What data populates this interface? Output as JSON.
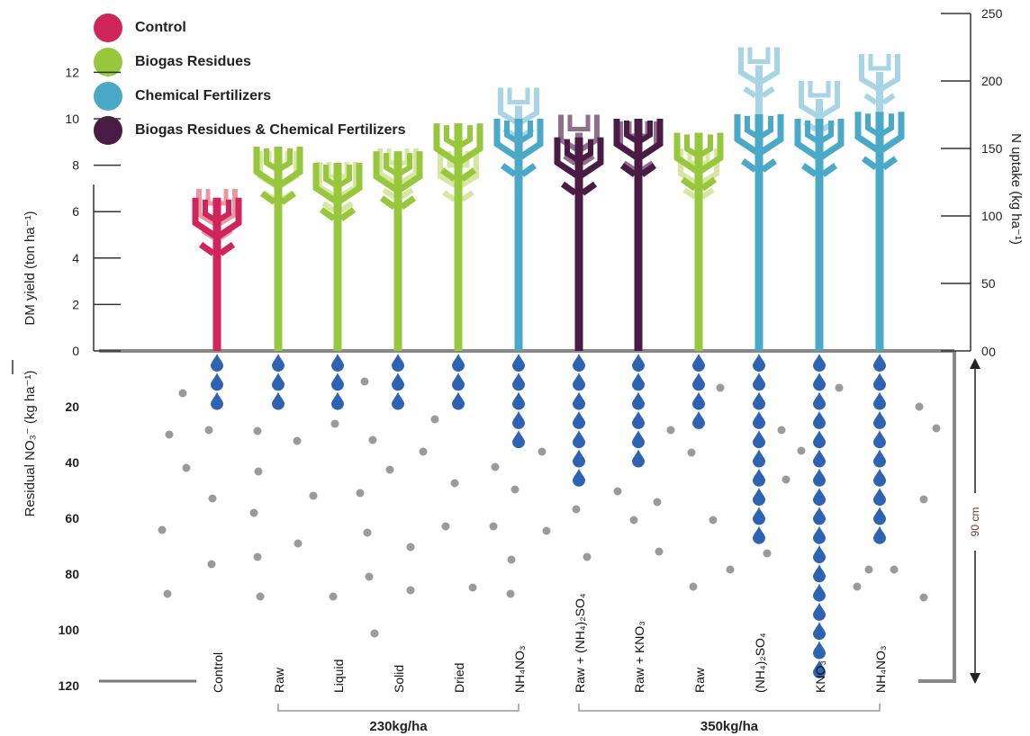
{
  "chart_data": {
    "type": "bar",
    "legend": [
      {
        "name": "Control",
        "color": "#d0255b"
      },
      {
        "name": "Biogas Residues",
        "color": "#96c73c"
      },
      {
        "name": "Chemical Fertilizers",
        "color": "#4ba9c8"
      },
      {
        "name": "Biogas Residues & Chemical Fertilizers",
        "color": "#4a1c45"
      }
    ],
    "legend_position": "top-left",
    "axes": {
      "dm_yield": {
        "label": "DM yield (ton ha⁻¹)",
        "ticks": [
          "0",
          "2",
          "4",
          "6",
          "8",
          "10",
          "12"
        ],
        "range": [
          0,
          12
        ]
      },
      "n_uptake": {
        "label": "N uptake (kg ha⁻¹)",
        "ticks": [
          "0",
          "50",
          "100",
          "150",
          "200",
          "250"
        ],
        "range": [
          0,
          250
        ]
      },
      "residual_no3": {
        "label": "Residual NO₃⁻ (kg ha⁻¹)",
        "ticks": [
          "20",
          "40",
          "60",
          "80",
          "100",
          "120"
        ],
        "range": [
          0,
          120
        ]
      }
    },
    "depth": {
      "label": "90 cm",
      "top_tick": "0"
    },
    "treatments": [
      {
        "name": "Control",
        "group": "Control",
        "dm_yield": 6.6,
        "n_uptake": 120,
        "residual_no3": 13
      },
      {
        "name": "Raw",
        "group": "Biogas Residues",
        "dm_yield": 8.8,
        "n_uptake": 148,
        "residual_no3": 13
      },
      {
        "name": "Liquid",
        "group": "Biogas Residues",
        "dm_yield": 8.1,
        "n_uptake": 140,
        "residual_no3": 13
      },
      {
        "name": "Solid",
        "group": "Biogas Residues",
        "dm_yield": 8.6,
        "n_uptake": 150,
        "residual_no3": 13
      },
      {
        "name": "Dried",
        "group": "Biogas Residues",
        "dm_yield": 9.8,
        "n_uptake": 148,
        "residual_no3": 13
      },
      {
        "name": "NH₄NO₃",
        "group": "Chemical Fertilizers",
        "dm_yield": 10.0,
        "n_uptake": 195,
        "residual_no3": 31
      },
      {
        "name": "Raw + (NH₄)₂SO₄",
        "group": "Biogas Residues & Chemical Fertilizers",
        "dm_yield": 9.2,
        "n_uptake": 175,
        "residual_no3": 42
      },
      {
        "name": "Raw + KNO₃",
        "group": "Biogas Residues & Chemical Fertilizers",
        "dm_yield": 10.0,
        "n_uptake": 170,
        "residual_no3": 35
      },
      {
        "name": "Raw",
        "group": "Biogas Residues",
        "dm_yield": 9.4,
        "n_uptake": 150,
        "residual_no3": 20
      },
      {
        "name": "(NH₄)₂SO₄",
        "group": "Chemical Fertilizers",
        "dm_yield": 10.2,
        "n_uptake": 225,
        "residual_no3": 64
      },
      {
        "name": "KNO₃",
        "group": "Chemical Fertilizers",
        "dm_yield": 10.0,
        "n_uptake": 200,
        "residual_no3": 108
      },
      {
        "name": "NH₄NO₃",
        "group": "Chemical Fertilizers",
        "dm_yield": 10.3,
        "n_uptake": 220,
        "residual_no3": 64
      }
    ],
    "brackets": [
      {
        "label": "230kg/ha",
        "from": 1,
        "to": 5
      },
      {
        "label": "350kg/ha",
        "from": 6,
        "to": 11
      }
    ]
  }
}
